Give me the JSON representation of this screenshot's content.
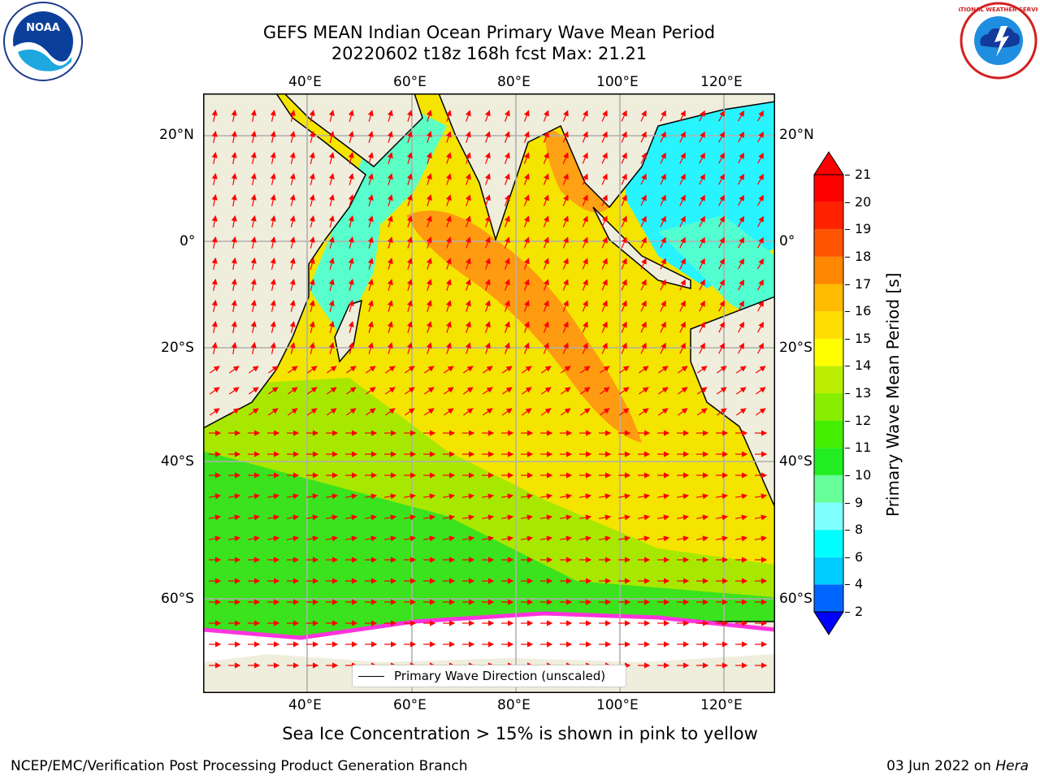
{
  "header": {
    "title_line1": "GEFS MEAN Indian Ocean Primary Wave Mean Period",
    "title_line2": "20220602 t18z 168h fcst   Max: 21.21"
  },
  "logos": {
    "left": "noaa-logo",
    "left_text": "NOAA",
    "right": "national-weather-service-logo",
    "right_text": "NATIONAL WEATHER SERVICE"
  },
  "map": {
    "lon_labels": [
      "40°E",
      "60°E",
      "80°E",
      "100°E",
      "120°E"
    ],
    "lat_labels": [
      "20°N",
      "0°",
      "20°S",
      "40°S",
      "60°S"
    ],
    "legend_label": "Primary Wave Direction (unscaled)",
    "colors": {
      "land": "#efeddc",
      "sea_ice": "#ffffff",
      "grid": "#b0b0b0",
      "arrow": "#ff0000"
    }
  },
  "colorbar": {
    "label": "Primary Wave Mean Period [s]",
    "ticks": [
      "2",
      "4",
      "6",
      "8",
      "9",
      "10",
      "11",
      "12",
      "13",
      "14",
      "15",
      "16",
      "17",
      "18",
      "19",
      "20",
      "21"
    ],
    "colors": [
      "#0000ff",
      "#0066ff",
      "#00ccff",
      "#00ffff",
      "#80ffff",
      "#66ff99",
      "#22ee22",
      "#44ee00",
      "#88ee00",
      "#bbee00",
      "#ffff00",
      "#ffdd00",
      "#ffbb00",
      "#ff8800",
      "#ff5500",
      "#ff2200",
      "#ff0000"
    ]
  },
  "caption": "Sea Ice Concentration > 15% is shown in pink to yellow",
  "footer": {
    "left": "NCEP/EMC/Verification Post Processing Product Generation Branch",
    "date": "03 Jun 2022 on",
    "host": "Hera"
  }
}
